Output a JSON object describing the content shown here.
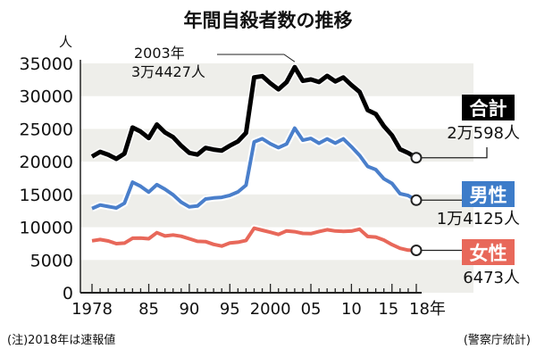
{
  "chart_data": {
    "type": "line",
    "title": "年間自殺者数の推移",
    "ylabel": "人",
    "ylim": [
      0,
      35000
    ],
    "yticks": [
      "0",
      "5000",
      "10000",
      "15000",
      "20000",
      "25000",
      "30000",
      "35000"
    ],
    "ytick_values": [
      0,
      5000,
      10000,
      15000,
      20000,
      25000,
      30000,
      35000
    ],
    "xlim": [
      1978,
      2018
    ],
    "xtick_labels": [
      {
        "year": 1978,
        "label": "1978"
      },
      {
        "year": 1985,
        "label": "85"
      },
      {
        "year": 1990,
        "label": "90"
      },
      {
        "year": 1995,
        "label": "95"
      },
      {
        "year": 2000,
        "label": "2000"
      },
      {
        "year": 2005,
        "label": "05"
      },
      {
        "year": 2010,
        "label": "10"
      },
      {
        "year": 2015,
        "label": "15"
      },
      {
        "year": 2018,
        "label": "18年"
      }
    ],
    "x": [
      1978,
      1979,
      1980,
      1981,
      1982,
      1983,
      1984,
      1985,
      1986,
      1987,
      1988,
      1989,
      1990,
      1991,
      1992,
      1993,
      1994,
      1995,
      1996,
      1997,
      1998,
      1999,
      2000,
      2001,
      2002,
      2003,
      2004,
      2005,
      2006,
      2007,
      2008,
      2009,
      2010,
      2011,
      2012,
      2013,
      2014,
      2015,
      2016,
      2017,
      2018
    ],
    "series": [
      {
        "name": "合計",
        "color": "#000000",
        "label_bg": "#000000",
        "end_label": "2万598人",
        "values": [
          20788,
          21503,
          21048,
          20434,
          21228,
          25202,
          24596,
          23599,
          25667,
          24460,
          23742,
          22436,
          21346,
          21084,
          22104,
          21851,
          21679,
          22445,
          23104,
          24391,
          32863,
          33048,
          31957,
          31042,
          32143,
          34427,
          32325,
          32552,
          32155,
          33093,
          32249,
          32845,
          31690,
          30651,
          27858,
          27283,
          25427,
          24025,
          21897,
          21321,
          20598
        ]
      },
      {
        "name": "男性",
        "color": "#4a7fcb",
        "label_bg": "#3d7cc9",
        "end_label": "1万4125人",
        "values": [
          12859,
          13386,
          13155,
          12942,
          13654,
          16876,
          16251,
          15356,
          16497,
          15802,
          14934,
          13818,
          13102,
          13242,
          14296,
          14468,
          14560,
          14853,
          15393,
          16416,
          23013,
          23512,
          22727,
          22144,
          22699,
          25110,
          23272,
          23540,
          22813,
          23478,
          22831,
          23472,
          22283,
          20955,
          19273,
          18787,
          17386,
          16681,
          15121,
          14826,
          14125
        ]
      },
      {
        "name": "女性",
        "color": "#e8685a",
        "label_bg": "#e8685a",
        "end_label": "6473人",
        "values": [
          7929,
          8117,
          7893,
          7492,
          7574,
          8326,
          8345,
          8243,
          9170,
          8658,
          8808,
          8618,
          8244,
          7842,
          7808,
          7383,
          7119,
          7592,
          7711,
          7975,
          9850,
          9536,
          9230,
          8898,
          9444,
          9317,
          9053,
          9012,
          9342,
          9615,
          9418,
          9373,
          9407,
          9696,
          8585,
          8496,
          8041,
          7344,
          6776,
          6495,
          6473
        ]
      }
    ],
    "annotation": {
      "year": 2003,
      "line1": "2003年",
      "line2": "3万4427人"
    },
    "note": "(注)2018年は速報値",
    "source": "(警察庁統計)"
  }
}
